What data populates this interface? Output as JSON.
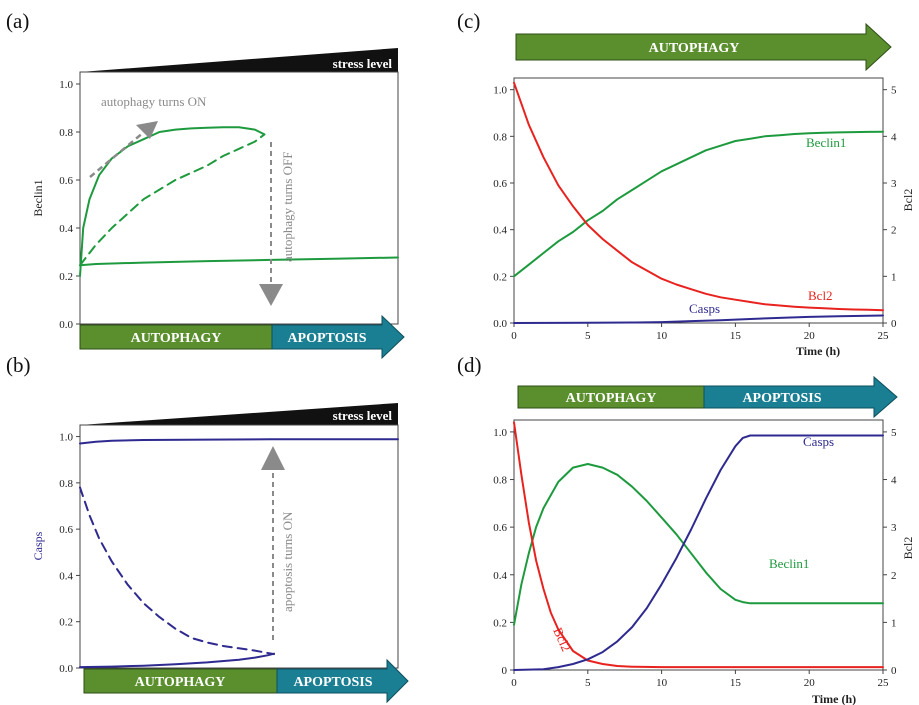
{
  "panels": [
    {
      "label": "(a)",
      "stress_label": "stress level",
      "ylabel": "Beclin1",
      "annotations": [
        "autophagy turns ON",
        "autophagy turns OFF"
      ],
      "phases": [
        "AUTOPHAGY",
        "APOPTOSIS"
      ]
    },
    {
      "label": "(b)",
      "stress_label": "stress level",
      "ylabel": "Casps",
      "annotations": [
        "apoptosis turns ON"
      ],
      "phases": [
        "AUTOPHAGY",
        "APOPTOSIS"
      ]
    },
    {
      "label": "(c)",
      "phase_top": [
        "AUTOPHAGY"
      ],
      "xlabel": "Time  (h)",
      "ylabel_right": "Bcl2"
    },
    {
      "label": "(d)",
      "phase_top": [
        "AUTOPHAGY",
        "APOPTOSIS"
      ],
      "xlabel": "Time (h)",
      "ylabel_right": "Bcl2"
    }
  ],
  "colors": {
    "beclin1": "#1e9a3e",
    "bcl2": "#e8231f",
    "casps": "#2e2a8f",
    "autophagy_bar": "#5b8f2e",
    "apoptosis_bar": "#1b7f93",
    "annotation_arrow": "#8a8a8a"
  },
  "chart_data": [
    {
      "panel": "(a)",
      "type": "line",
      "xlabel": "",
      "ylabel": "Beclin1",
      "ylim": [
        0,
        1.05
      ],
      "yticks": [
        0.0,
        0.2,
        0.4,
        0.6,
        0.8,
        1.0
      ],
      "ytick_labels": [
        "0.0",
        "0.2",
        "0.4",
        "0.6",
        "0.8",
        "1.0"
      ],
      "x_axis": "stress level (increasing)",
      "xlim": [
        0,
        1
      ],
      "grid": false,
      "legend": "none",
      "series": [
        {
          "name": "",
          "color_key": "beclin1",
          "style": "solid",
          "x": [
            0,
            0.05,
            0.2,
            0.4,
            0.6,
            0.8,
            1.0
          ],
          "y": [
            0.245,
            0.25,
            0.256,
            0.262,
            0.267,
            0.272,
            0.277
          ]
        },
        {
          "name": "",
          "color_key": "beclin1",
          "style": "solid",
          "x": [
            0,
            0.01,
            0.03,
            0.06,
            0.1,
            0.15,
            0.2,
            0.25,
            0.3,
            0.35,
            0.4,
            0.45,
            0.5,
            0.55,
            0.58
          ],
          "y": [
            0.2,
            0.4,
            0.52,
            0.62,
            0.69,
            0.74,
            0.77,
            0.8,
            0.81,
            0.815,
            0.818,
            0.82,
            0.82,
            0.81,
            0.79
          ]
        },
        {
          "name": "",
          "color_key": "beclin1",
          "style": "dashed",
          "x": [
            0,
            0.05,
            0.1,
            0.15,
            0.2,
            0.25,
            0.3,
            0.35,
            0.4,
            0.45,
            0.5,
            0.55,
            0.58
          ],
          "y": [
            0.245,
            0.33,
            0.4,
            0.46,
            0.52,
            0.56,
            0.6,
            0.63,
            0.66,
            0.7,
            0.73,
            0.76,
            0.79
          ]
        }
      ],
      "stress_level_text": "stress level",
      "annotations": [
        "autophagy turns ON",
        "autophagy turns OFF"
      ],
      "phases": [
        "AUTOPHAGY",
        "APOPTOSIS"
      ]
    },
    {
      "panel": "(b)",
      "type": "line",
      "xlabel": "",
      "ylabel": "Casps",
      "ylim": [
        0,
        1.05
      ],
      "yticks": [
        0.0,
        0.2,
        0.4,
        0.6,
        0.8,
        1.0
      ],
      "ytick_labels": [
        "0.0",
        "0.2",
        "0.4",
        "0.6",
        "0.8",
        "1.0"
      ],
      "x_axis": "stress level (increasing)",
      "xlim": [
        0,
        1
      ],
      "grid": false,
      "legend": "none",
      "series": [
        {
          "name": "",
          "color_key": "casps",
          "style": "solid",
          "x": [
            0,
            0.05,
            0.1,
            0.2,
            0.4,
            0.6,
            0.8,
            1.0
          ],
          "y": [
            0.97,
            0.978,
            0.982,
            0.985,
            0.987,
            0.988,
            0.988,
            0.988
          ]
        },
        {
          "name": "",
          "color_key": "casps",
          "style": "dashed",
          "x": [
            0,
            0.03,
            0.06,
            0.1,
            0.15,
            0.2,
            0.25,
            0.3,
            0.35,
            0.4,
            0.45,
            0.5,
            0.55,
            0.59,
            0.61
          ],
          "y": [
            0.78,
            0.66,
            0.56,
            0.46,
            0.36,
            0.28,
            0.22,
            0.17,
            0.13,
            0.11,
            0.095,
            0.085,
            0.075,
            0.065,
            0.06
          ]
        },
        {
          "name": "",
          "color_key": "casps",
          "style": "solid",
          "x": [
            0,
            0.1,
            0.2,
            0.3,
            0.4,
            0.5,
            0.55,
            0.59,
            0.61
          ],
          "y": [
            0.004,
            0.006,
            0.01,
            0.016,
            0.024,
            0.036,
            0.045,
            0.055,
            0.062
          ]
        }
      ],
      "stress_level_text": "stress level",
      "annotations": [
        "apoptosis turns ON"
      ],
      "phases": [
        "AUTOPHAGY",
        "APOPTOSIS"
      ]
    },
    {
      "panel": "(c)",
      "type": "line",
      "xlabel": "Time  (h)",
      "ylabel": "",
      "ylabel_right": "Bcl2",
      "xlim": [
        0,
        25
      ],
      "xticks": [
        0,
        5,
        10,
        15,
        20,
        25
      ],
      "ylim": [
        0,
        1.05
      ],
      "yticks": [
        0.0,
        0.2,
        0.4,
        0.6,
        0.8,
        1.0
      ],
      "ytick_labels": [
        "0.0",
        "0.2",
        "0.4",
        "0.6",
        "0.8",
        "1.0"
      ],
      "y2lim": [
        0,
        5.25
      ],
      "y2ticks": [
        0,
        1,
        2,
        3,
        4,
        5
      ],
      "grid": false,
      "legend": "inline labels",
      "series": [
        {
          "name": "Beclin1",
          "color_key": "beclin1",
          "axis": "left",
          "x": [
            0,
            1,
            2,
            3,
            4,
            5,
            6,
            7,
            8,
            9,
            10,
            11,
            12,
            13,
            14,
            15,
            16,
            17,
            18,
            19,
            20,
            21,
            22,
            23,
            24,
            25
          ],
          "y": [
            0.2,
            0.25,
            0.3,
            0.35,
            0.39,
            0.44,
            0.48,
            0.53,
            0.57,
            0.61,
            0.65,
            0.68,
            0.71,
            0.74,
            0.76,
            0.78,
            0.79,
            0.8,
            0.805,
            0.81,
            0.813,
            0.815,
            0.817,
            0.818,
            0.819,
            0.82
          ]
        },
        {
          "name": "Bcl2",
          "color_key": "bcl2",
          "axis": "left",
          "x": [
            0,
            1,
            2,
            3,
            4,
            5,
            6,
            7,
            8,
            9,
            10,
            11,
            12,
            13,
            14,
            15,
            16,
            17,
            18,
            19,
            20,
            21,
            22,
            23,
            24,
            25
          ],
          "y": [
            1.03,
            0.85,
            0.71,
            0.59,
            0.5,
            0.42,
            0.36,
            0.31,
            0.26,
            0.225,
            0.19,
            0.165,
            0.145,
            0.125,
            0.11,
            0.1,
            0.09,
            0.08,
            0.075,
            0.07,
            0.066,
            0.063,
            0.06,
            0.058,
            0.057,
            0.055
          ]
        },
        {
          "name": "Casps",
          "color_key": "casps",
          "axis": "left",
          "x": [
            0,
            5,
            8,
            10,
            12,
            14,
            16,
            18,
            20,
            22,
            25
          ],
          "y": [
            0.0,
            0.001,
            0.002,
            0.004,
            0.008,
            0.012,
            0.017,
            0.022,
            0.026,
            0.029,
            0.032
          ]
        }
      ],
      "phase_top": [
        "AUTOPHAGY"
      ]
    },
    {
      "panel": "(d)",
      "type": "line",
      "xlabel": "Time (h)",
      "ylabel": "",
      "ylabel_right": "Bcl2",
      "xlim": [
        0,
        25
      ],
      "xticks": [
        0,
        5,
        10,
        15,
        20,
        25
      ],
      "ylim": [
        0,
        1.05
      ],
      "yticks": [
        0,
        0.2,
        0.4,
        0.6,
        0.8,
        1.0
      ],
      "ytick_labels": [
        "0",
        "0.2",
        "0.4",
        "0.6",
        "0.8",
        "1.0"
      ],
      "y2lim": [
        0,
        5.25
      ],
      "y2ticks": [
        0,
        1,
        2,
        3,
        4,
        5
      ],
      "grid": false,
      "legend": "inline labels",
      "series": [
        {
          "name": "Beclin1",
          "color_key": "beclin1",
          "axis": "left",
          "x": [
            0,
            0.5,
            1,
            1.5,
            2,
            3,
            4,
            5,
            6,
            7,
            8,
            9,
            10,
            11,
            12,
            13,
            14,
            15,
            15.5,
            16,
            18,
            20,
            25
          ],
          "y": [
            0.19,
            0.36,
            0.49,
            0.6,
            0.68,
            0.79,
            0.85,
            0.865,
            0.85,
            0.82,
            0.77,
            0.71,
            0.64,
            0.57,
            0.49,
            0.41,
            0.34,
            0.295,
            0.285,
            0.28,
            0.28,
            0.28,
            0.28
          ]
        },
        {
          "name": "Bcl2",
          "color_key": "bcl2",
          "axis": "left",
          "x": [
            0,
            0.5,
            1,
            1.5,
            2,
            2.5,
            3,
            4,
            5,
            6,
            7,
            8,
            10,
            15,
            20,
            25
          ],
          "y": [
            1.04,
            0.82,
            0.62,
            0.46,
            0.34,
            0.24,
            0.17,
            0.08,
            0.04,
            0.025,
            0.017,
            0.014,
            0.012,
            0.012,
            0.012,
            0.012
          ]
        },
        {
          "name": "Casps",
          "color_key": "casps",
          "axis": "left",
          "x": [
            0,
            2,
            3,
            4,
            5,
            6,
            7,
            8,
            9,
            10,
            11,
            12,
            13,
            14,
            15,
            15.5,
            16,
            18,
            20,
            25
          ],
          "y": [
            0,
            0.003,
            0.012,
            0.025,
            0.045,
            0.075,
            0.12,
            0.18,
            0.26,
            0.36,
            0.47,
            0.59,
            0.72,
            0.84,
            0.94,
            0.975,
            0.985,
            0.985,
            0.985,
            0.985
          ]
        }
      ],
      "phase_top": [
        "AUTOPHAGY",
        "APOPTOSIS"
      ]
    }
  ]
}
